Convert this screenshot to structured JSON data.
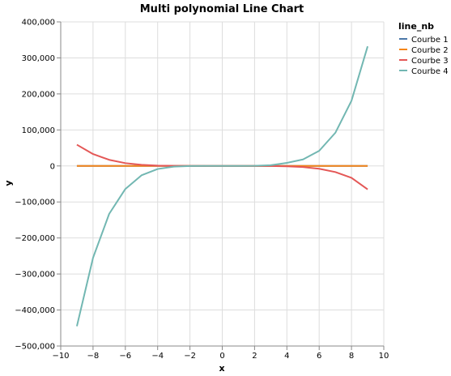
{
  "chart_data": {
    "type": "line",
    "title": "Multi polynomial Line Chart",
    "xlabel": "x",
    "ylabel": "y",
    "xlim": [
      -10,
      10
    ],
    "ylim": [
      -500000,
      400000
    ],
    "x_ticks": [
      -10,
      -8,
      -6,
      -4,
      -2,
      0,
      2,
      4,
      6,
      8,
      10
    ],
    "x_tick_labels": [
      "−10",
      "−8",
      "−6",
      "−4",
      "−2",
      "0",
      "2",
      "4",
      "6",
      "8",
      "10"
    ],
    "y_ticks": [
      400000,
      300000,
      200000,
      100000,
      0,
      -100000,
      -200000,
      -300000,
      -400000,
      -500000
    ],
    "y_tick_labels": [
      "400,000",
      "300,000",
      "200,000",
      "100,000",
      "0",
      "−100,000",
      "−200,000",
      "−300,000",
      "−400,000",
      "−500,000"
    ],
    "grid": true,
    "legend": {
      "title": "line_nb",
      "position": "top-right"
    },
    "x": [
      -9,
      -8,
      -7,
      -6,
      -5,
      -4,
      -3,
      -2,
      -1,
      0,
      1,
      2,
      3,
      4,
      5,
      6,
      7,
      8,
      9
    ],
    "series": [
      {
        "name": "Courbe 1",
        "color": "#4c78a8",
        "values": [
          0,
          0,
          0,
          0,
          0,
          0,
          0,
          0,
          0,
          0,
          0,
          0,
          0,
          0,
          0,
          0,
          0,
          0,
          0
        ]
      },
      {
        "name": "Courbe 2",
        "color": "#f58518",
        "values": [
          0,
          0,
          0,
          0,
          0,
          0,
          0,
          0,
          0,
          0,
          0,
          0,
          0,
          0,
          0,
          0,
          0,
          0,
          0
        ]
      },
      {
        "name": "Courbe 3",
        "color": "#e45756",
        "values": [
          59000,
          33000,
          17000,
          7800,
          3100,
          1000,
          240,
          30,
          0,
          0,
          0,
          -30,
          -240,
          -1000,
          -3100,
          -7800,
          -17000,
          -33000,
          -65000
        ]
      },
      {
        "name": "Courbe 4",
        "color": "#72b7b2",
        "values": [
          -445000,
          -255000,
          -133000,
          -64000,
          -26000,
          -8500,
          -2000,
          -250,
          0,
          0,
          0,
          250,
          2000,
          8500,
          18000,
          42000,
          92000,
          181000,
          332000
        ]
      }
    ]
  }
}
